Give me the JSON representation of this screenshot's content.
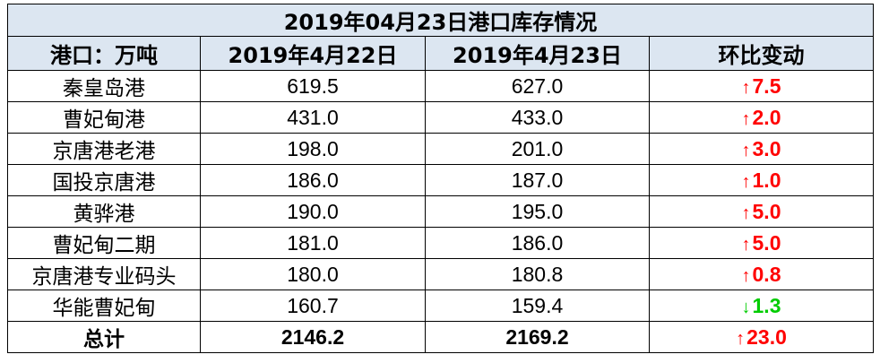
{
  "title": "2019年04月23日港口库存情况",
  "headers": [
    "港口：万吨",
    "2019年4月22日",
    "2019年4月23日",
    "环比变动"
  ],
  "colors": {
    "header_bg": "#dce6f1",
    "up": "#ff0000",
    "down": "#00cc00"
  },
  "rows": [
    {
      "port": "秦皇岛港",
      "d1": "619.5",
      "d2": "627.0",
      "dir": "up",
      "arrow": "↑",
      "change": "7.5"
    },
    {
      "port": "曹妃甸港",
      "d1": "431.0",
      "d2": "433.0",
      "dir": "up",
      "arrow": "↑",
      "change": "2.0"
    },
    {
      "port": "京唐港老港",
      "d1": "198.0",
      "d2": "201.0",
      "dir": "up",
      "arrow": "↑",
      "change": "3.0"
    },
    {
      "port": "国投京唐港",
      "d1": "186.0",
      "d2": "187.0",
      "dir": "up",
      "arrow": "↑",
      "change": "1.0"
    },
    {
      "port": "黄骅港",
      "d1": "190.0",
      "d2": "195.0",
      "dir": "up",
      "arrow": "↑",
      "change": "5.0"
    },
    {
      "port": "曹妃甸二期",
      "d1": "181.0",
      "d2": "186.0",
      "dir": "up",
      "arrow": "↑",
      "change": "5.0"
    },
    {
      "port": "京唐港专业码头",
      "d1": "180.0",
      "d2": "180.8",
      "dir": "up",
      "arrow": "↑",
      "change": "0.8"
    },
    {
      "port": "华能曹妃甸",
      "d1": "160.7",
      "d2": "159.4",
      "dir": "down",
      "arrow": "↓",
      "change": "1.3"
    }
  ],
  "total": {
    "label": "总计",
    "d1": "2146.2",
    "d2": "2169.2",
    "dir": "up",
    "arrow": "↑",
    "change": "23.0"
  }
}
